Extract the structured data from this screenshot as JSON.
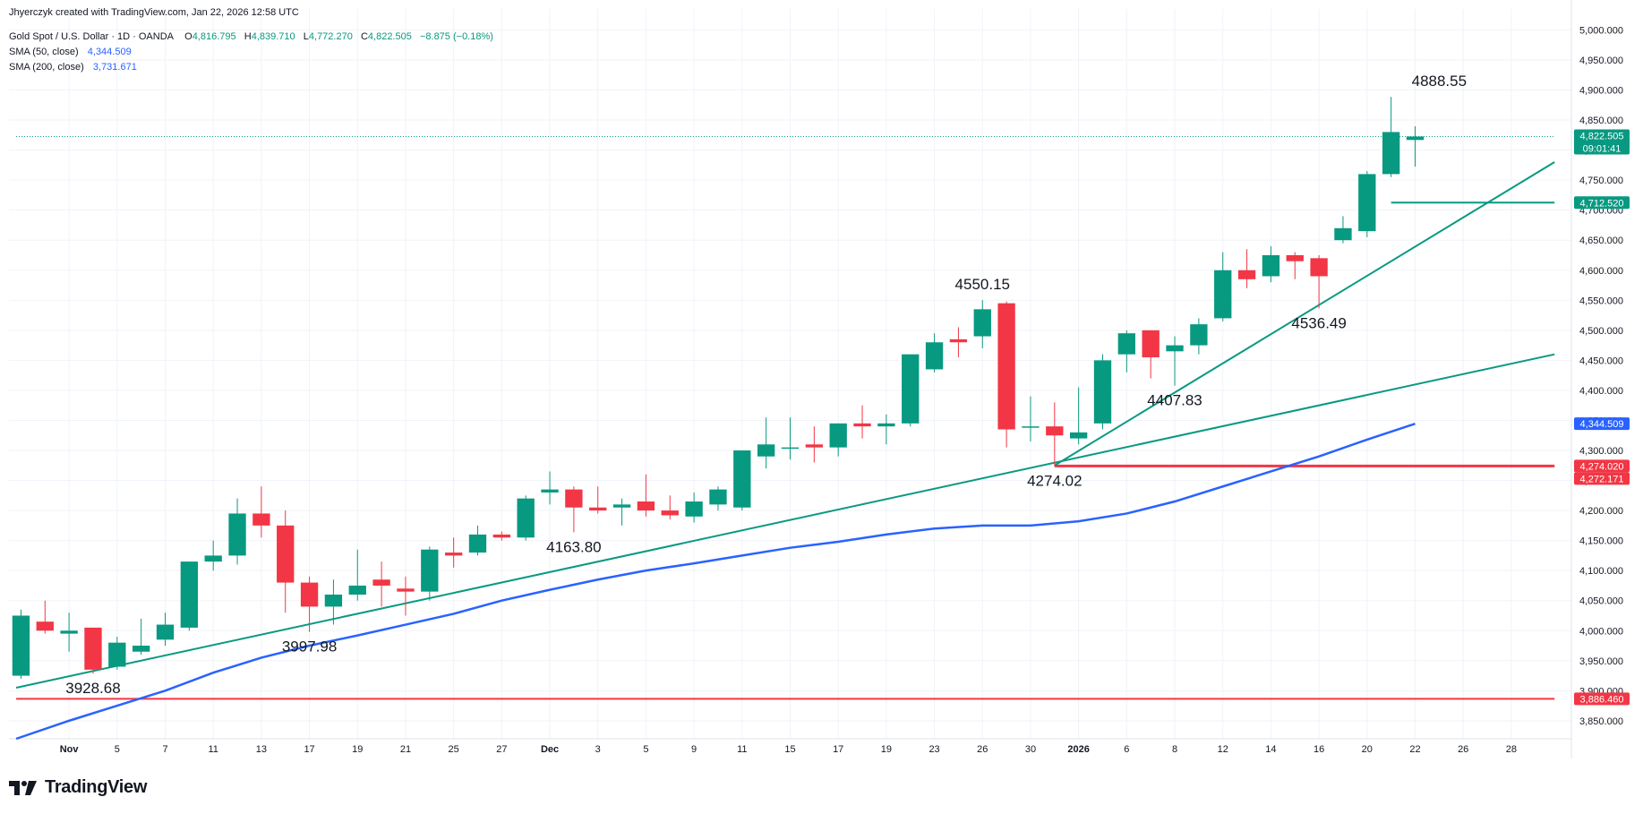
{
  "credit": "Jhyerczyk created with TradingView.com, Jan 22, 2026 12:58 UTC",
  "header": {
    "symbol": "Gold Spot / U.S. Dollar · 1D · OANDA",
    "o_label": "O",
    "o_value": "4,816.795",
    "h_label": "H",
    "h_value": "4,839.710",
    "l_label": "L",
    "l_value": "4,772.270",
    "c_label": "C",
    "c_value": "4,822.505",
    "change": "−8.875 (−0.18%)",
    "sma50_label": "SMA (50, close)",
    "sma50_value": "4,344.509",
    "sma200_label": "SMA (200, close)",
    "sma200_value": "3,731.671"
  },
  "logo": {
    "text": "TradingView",
    "icon": "tradingview-logo-icon"
  },
  "colors": {
    "up": "#089981",
    "down": "#f23645",
    "sma50": "#2962ff",
    "grid": "#f0f3fa",
    "axis_text": "#131722"
  },
  "chart_data": {
    "type": "candlestick",
    "title": "Gold Spot / U.S. Dollar · 1D · OANDA",
    "ylim": [
      3820,
      5020
    ],
    "y_ticks": [
      3850,
      3900,
      3950,
      4000,
      4050,
      4100,
      4150,
      4200,
      4250,
      4300,
      4350,
      4400,
      4450,
      4500,
      4550,
      4600,
      4650,
      4700,
      4750,
      4800,
      4850,
      4900,
      4950,
      5000
    ],
    "y_tick_labels": [
      "3,850.000",
      "3,900.000",
      "3,950.000",
      "4,000.000",
      "4,050.000",
      "4,100.000",
      "4,150.000",
      "4,200.000",
      "4,250.000",
      "4,300.000",
      "4,350.000",
      "4,400.000",
      "4,450.000",
      "4,500.000",
      "4,550.000",
      "4,600.000",
      "4,650.000",
      "4,700.000",
      "4,750.000",
      "4,800.000",
      "4,850.000",
      "4,900.000",
      "4,950.000",
      "5,000.000"
    ],
    "x_ticks": [
      {
        "i": 2,
        "label": "Nov"
      },
      {
        "i": 4,
        "label": "5"
      },
      {
        "i": 6,
        "label": "7"
      },
      {
        "i": 8,
        "label": "11"
      },
      {
        "i": 10,
        "label": "13"
      },
      {
        "i": 12,
        "label": "17"
      },
      {
        "i": 14,
        "label": "19"
      },
      {
        "i": 16,
        "label": "21"
      },
      {
        "i": 18,
        "label": "25"
      },
      {
        "i": 20,
        "label": "27"
      },
      {
        "i": 22,
        "label": "Dec"
      },
      {
        "i": 24,
        "label": "3"
      },
      {
        "i": 26,
        "label": "5"
      },
      {
        "i": 28,
        "label": "9"
      },
      {
        "i": 30,
        "label": "11"
      },
      {
        "i": 32,
        "label": "15"
      },
      {
        "i": 34,
        "label": "17"
      },
      {
        "i": 36,
        "label": "19"
      },
      {
        "i": 38,
        "label": "23"
      },
      {
        "i": 40,
        "label": "26"
      },
      {
        "i": 42,
        "label": "30"
      },
      {
        "i": 44,
        "label": "2026"
      },
      {
        "i": 46,
        "label": "6"
      },
      {
        "i": 48,
        "label": "8"
      },
      {
        "i": 50,
        "label": "12"
      },
      {
        "i": 52,
        "label": "14"
      },
      {
        "i": 54,
        "label": "16"
      },
      {
        "i": 56,
        "label": "20"
      },
      {
        "i": 58,
        "label": "22"
      },
      {
        "i": 60,
        "label": "26"
      },
      {
        "i": 62,
        "label": "28"
      }
    ],
    "candles": [
      {
        "i": 0,
        "o": 3925,
        "h": 4035,
        "l": 3920,
        "c": 4025
      },
      {
        "i": 1,
        "o": 4015,
        "h": 4050,
        "l": 3995,
        "c": 4000
      },
      {
        "i": 2,
        "o": 3995,
        "h": 4030,
        "l": 3965,
        "c": 4000
      },
      {
        "i": 3,
        "o": 4005,
        "h": 4005,
        "l": 3928.68,
        "c": 3935
      },
      {
        "i": 4,
        "o": 3940,
        "h": 3990,
        "l": 3935,
        "c": 3980
      },
      {
        "i": 5,
        "o": 3965,
        "h": 4020,
        "l": 3960,
        "c": 3975
      },
      {
        "i": 6,
        "o": 3985,
        "h": 4030,
        "l": 3975,
        "c": 4010
      },
      {
        "i": 7,
        "o": 4005,
        "h": 4115,
        "l": 4000,
        "c": 4115
      },
      {
        "i": 8,
        "o": 4115,
        "h": 4150,
        "l": 4100,
        "c": 4125
      },
      {
        "i": 9,
        "o": 4125,
        "h": 4220,
        "l": 4110,
        "c": 4195
      },
      {
        "i": 10,
        "o": 4195,
        "h": 4240,
        "l": 4155,
        "c": 4175
      },
      {
        "i": 11,
        "o": 4175,
        "h": 4200,
        "l": 4030,
        "c": 4080
      },
      {
        "i": 12,
        "o": 4080,
        "h": 4090,
        "l": 3997.98,
        "c": 4040
      },
      {
        "i": 13,
        "o": 4040,
        "h": 4085,
        "l": 4010,
        "c": 4060
      },
      {
        "i": 14,
        "o": 4060,
        "h": 4135,
        "l": 4050,
        "c": 4075
      },
      {
        "i": 15,
        "o": 4085,
        "h": 4115,
        "l": 4040,
        "c": 4075
      },
      {
        "i": 16,
        "o": 4070,
        "h": 4090,
        "l": 4025,
        "c": 4065
      },
      {
        "i": 17,
        "o": 4065,
        "h": 4140,
        "l": 4050,
        "c": 4135
      },
      {
        "i": 18,
        "o": 4130,
        "h": 4155,
        "l": 4105,
        "c": 4125
      },
      {
        "i": 19,
        "o": 4130,
        "h": 4175,
        "l": 4125,
        "c": 4160
      },
      {
        "i": 20,
        "o": 4160,
        "h": 4165,
        "l": 4150,
        "c": 4155
      },
      {
        "i": 21,
        "o": 4155,
        "h": 4225,
        "l": 4150,
        "c": 4220
      },
      {
        "i": 22,
        "o": 4230,
        "h": 4265,
        "l": 4210,
        "c": 4235
      },
      {
        "i": 23,
        "o": 4235,
        "h": 4240,
        "l": 4163.8,
        "c": 4205
      },
      {
        "i": 24,
        "o": 4205,
        "h": 4240,
        "l": 4195,
        "c": 4200
      },
      {
        "i": 25,
        "o": 4205,
        "h": 4220,
        "l": 4175,
        "c": 4210
      },
      {
        "i": 26,
        "o": 4215,
        "h": 4260,
        "l": 4190,
        "c": 4200
      },
      {
        "i": 27,
        "o": 4200,
        "h": 4225,
        "l": 4185,
        "c": 4192
      },
      {
        "i": 28,
        "o": 4190,
        "h": 4230,
        "l": 4180,
        "c": 4215
      },
      {
        "i": 29,
        "o": 4210,
        "h": 4240,
        "l": 4200,
        "c": 4235
      },
      {
        "i": 30,
        "o": 4205,
        "h": 4300,
        "l": 4200,
        "c": 4300
      },
      {
        "i": 31,
        "o": 4290,
        "h": 4355,
        "l": 4270,
        "c": 4310
      },
      {
        "i": 32,
        "o": 4305,
        "h": 4355,
        "l": 4285,
        "c": 4305
      },
      {
        "i": 33,
        "o": 4310,
        "h": 4340,
        "l": 4280,
        "c": 4305
      },
      {
        "i": 34,
        "o": 4305,
        "h": 4345,
        "l": 4290,
        "c": 4345
      },
      {
        "i": 35,
        "o": 4345,
        "h": 4375,
        "l": 4320,
        "c": 4340
      },
      {
        "i": 36,
        "o": 4340,
        "h": 4360,
        "l": 4310,
        "c": 4345
      },
      {
        "i": 37,
        "o": 4345,
        "h": 4460,
        "l": 4340,
        "c": 4460
      },
      {
        "i": 38,
        "o": 4435,
        "h": 4495,
        "l": 4430,
        "c": 4480
      },
      {
        "i": 39,
        "o": 4485,
        "h": 4505,
        "l": 4455,
        "c": 4480
      },
      {
        "i": 40,
        "o": 4490,
        "h": 4550.15,
        "l": 4470,
        "c": 4535
      },
      {
        "i": 41,
        "o": 4545,
        "h": 4548,
        "l": 4305,
        "c": 4335
      },
      {
        "i": 42,
        "o": 4340,
        "h": 4390,
        "l": 4315,
        "c": 4340
      },
      {
        "i": 43,
        "o": 4340,
        "h": 4380,
        "l": 4274.02,
        "c": 4325
      },
      {
        "i": 44,
        "o": 4320,
        "h": 4405,
        "l": 4310,
        "c": 4330
      },
      {
        "i": 45,
        "o": 4345,
        "h": 4460,
        "l": 4335,
        "c": 4450
      },
      {
        "i": 46,
        "o": 4460,
        "h": 4500,
        "l": 4430,
        "c": 4495
      },
      {
        "i": 47,
        "o": 4500,
        "h": 4500,
        "l": 4420,
        "c": 4455
      },
      {
        "i": 48,
        "o": 4465,
        "h": 4490,
        "l": 4407.83,
        "c": 4475
      },
      {
        "i": 49,
        "o": 4475,
        "h": 4520,
        "l": 4460,
        "c": 4510
      },
      {
        "i": 50,
        "o": 4520,
        "h": 4630,
        "l": 4515,
        "c": 4600
      },
      {
        "i": 51,
        "o": 4600,
        "h": 4635,
        "l": 4570,
        "c": 4585
      },
      {
        "i": 52,
        "o": 4590,
        "h": 4640,
        "l": 4580,
        "c": 4625
      },
      {
        "i": 53,
        "o": 4625,
        "h": 4630,
        "l": 4585,
        "c": 4615
      },
      {
        "i": 54,
        "o": 4620,
        "h": 4625,
        "l": 4536.49,
        "c": 4590
      },
      {
        "i": 55,
        "o": 4650,
        "h": 4690,
        "l": 4645,
        "c": 4670
      },
      {
        "i": 56,
        "o": 4665,
        "h": 4765,
        "l": 4655,
        "c": 4760
      },
      {
        "i": 57,
        "o": 4760,
        "h": 4888.55,
        "l": 4755,
        "c": 4830
      },
      {
        "i": 58,
        "o": 4816.795,
        "h": 4839.71,
        "l": 4772.27,
        "c": 4822.505
      }
    ],
    "annotations": [
      {
        "i": 59,
        "price": 4888.55,
        "text": "4888.55",
        "pos": "above"
      },
      {
        "i": 40,
        "price": 4550.15,
        "text": "4550.15",
        "pos": "above"
      },
      {
        "i": 54,
        "price": 4536.49,
        "text": "4536.49",
        "pos": "below"
      },
      {
        "i": 48,
        "price": 4407.83,
        "text": "4407.83",
        "pos": "below"
      },
      {
        "i": 43,
        "price": 4274.02,
        "text": "4274.02",
        "pos": "below"
      },
      {
        "i": 23,
        "price": 4163.8,
        "text": "4163.80",
        "pos": "below"
      },
      {
        "i": 12,
        "price": 3997.98,
        "text": "3997.98",
        "pos": "below"
      },
      {
        "i": 3,
        "price": 3928.68,
        "text": "3928.68",
        "pos": "below"
      }
    ],
    "sma50": [
      [
        -0.2,
        3820
      ],
      [
        2,
        3850
      ],
      [
        4,
        3875
      ],
      [
        6,
        3900
      ],
      [
        8,
        3930
      ],
      [
        10,
        3955
      ],
      [
        12,
        3975
      ],
      [
        14,
        3992
      ],
      [
        16,
        4010
      ],
      [
        18,
        4028
      ],
      [
        20,
        4050
      ],
      [
        22,
        4068
      ],
      [
        24,
        4085
      ],
      [
        26,
        4100
      ],
      [
        28,
        4112
      ],
      [
        30,
        4125
      ],
      [
        32,
        4138
      ],
      [
        34,
        4148
      ],
      [
        36,
        4160
      ],
      [
        38,
        4170
      ],
      [
        40,
        4175
      ],
      [
        42,
        4175
      ],
      [
        44,
        4182
      ],
      [
        46,
        4195
      ],
      [
        48,
        4215
      ],
      [
        50,
        4240
      ],
      [
        52,
        4265
      ],
      [
        54,
        4290
      ],
      [
        56,
        4318
      ],
      [
        58,
        4344.509
      ]
    ],
    "trend_lines": [
      {
        "from": [
          -0.2,
          3905
        ],
        "to": [
          63.8,
          4460
        ],
        "color": "#089981"
      },
      {
        "from": [
          43,
          4275
        ],
        "to": [
          63.8,
          4780
        ],
        "color": "#089981"
      }
    ],
    "horizontal_lines": [
      {
        "price": 3886.46,
        "from": -0.2,
        "to": 63.8,
        "color": "#f23645",
        "width": 2
      },
      {
        "price": 4274.02,
        "from": 43,
        "to": 63.8,
        "color": "#f23645",
        "width": 3
      },
      {
        "price": 4712.52,
        "from": 57,
        "to": 63.8,
        "color": "#089981",
        "width": 2
      },
      {
        "price": 4822.505,
        "from": -0.2,
        "to": 63.8,
        "color": "#089981",
        "width": 1,
        "dotted": true
      }
    ],
    "price_labels": [
      {
        "price": 4822.505,
        "text": "4,822.505",
        "sub": "09:01:41",
        "color": "#089981"
      },
      {
        "price": 4712.52,
        "text": "4,712.520",
        "color": "#089981"
      },
      {
        "price": 4344.509,
        "text": "4,344.509",
        "color": "#2962ff"
      },
      {
        "price": 4274.02,
        "text": "4,274.020",
        "color": "#f23645"
      },
      {
        "price": 4272.171,
        "text": "4,272.171",
        "color": "#f23645"
      },
      {
        "price": 3886.46,
        "text": "3,886.460",
        "color": "#f23645"
      }
    ]
  }
}
